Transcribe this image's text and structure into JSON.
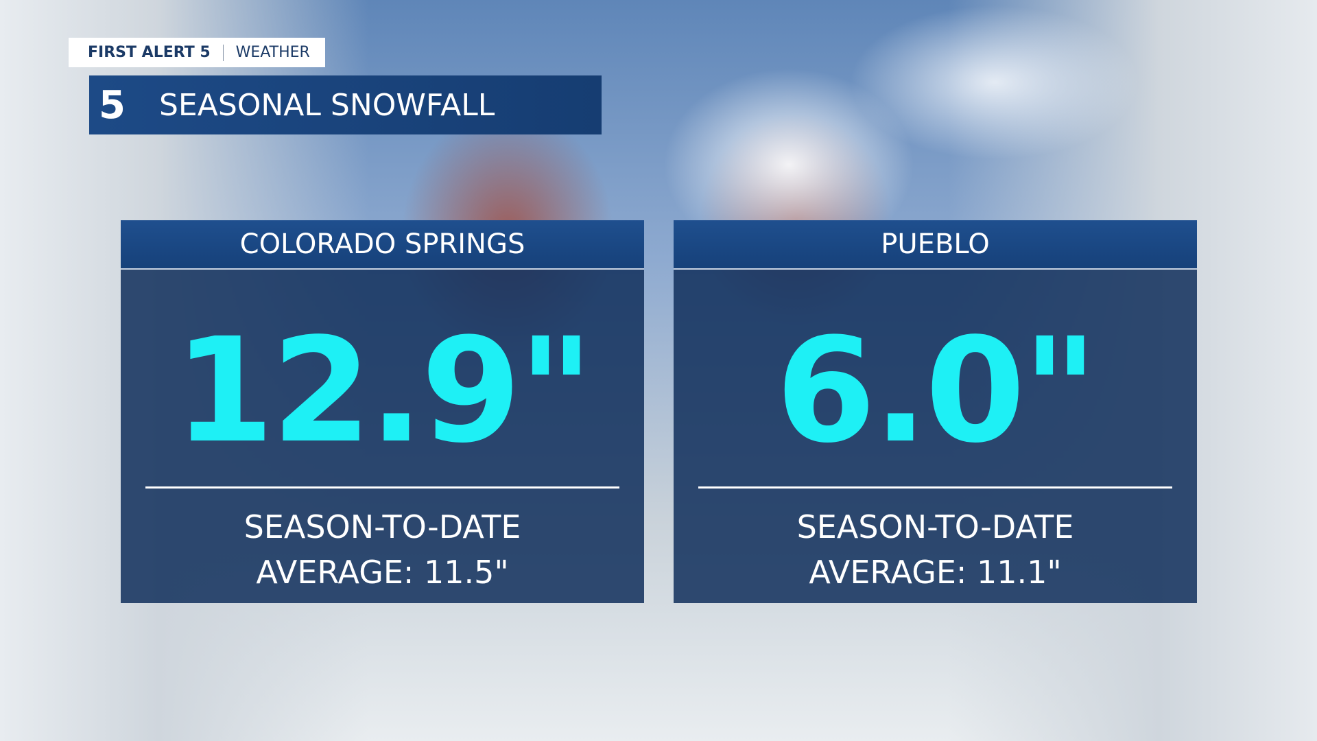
{
  "header": {
    "brand": "FIRST ALERT 5",
    "section": "WEATHER",
    "logo": "5",
    "title": "SEASONAL SNOWFALL"
  },
  "cards": [
    {
      "name": "COLORADO SPRINGS",
      "value": "12.9\"",
      "lines": [
        "SEASON-TO-DATE",
        "AVERAGE: 11.5\""
      ]
    },
    {
      "name": "PUEBLO",
      "value": "6.0\"",
      "lines": [
        "SEASON-TO-DATE",
        "AVERAGE: 11.1\""
      ]
    }
  ]
}
